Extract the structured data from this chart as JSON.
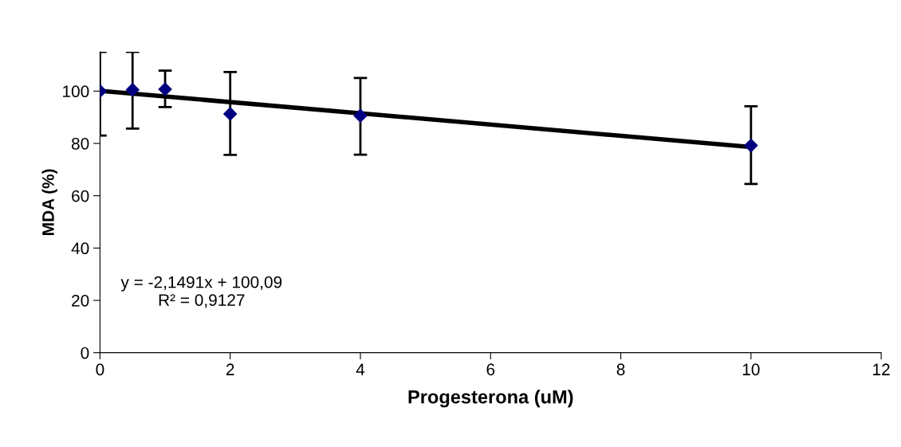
{
  "chart_data": {
    "type": "scatter",
    "xlabel": "Progesterona (uM)",
    "ylabel": "MDA (%)",
    "xlim": [
      0,
      12
    ],
    "xticks": [
      0,
      2,
      4,
      6,
      8,
      10,
      12
    ],
    "ylim": [
      0,
      115
    ],
    "yticks": [
      0,
      20,
      40,
      60,
      80,
      100
    ],
    "grid": false,
    "legend": false,
    "series": [
      {
        "color": "#000080",
        "marker": "diamond",
        "x": [
          0,
          0.5,
          1,
          2,
          4,
          10
        ],
        "values": [
          100,
          100.5,
          100.7,
          91.3,
          90.6,
          79.2
        ],
        "errors": [
          [
            83,
            115
          ],
          [
            85.7,
            115
          ],
          [
            93.9,
            107.8
          ],
          [
            75.6,
            107.3
          ],
          [
            75.7,
            105
          ],
          [
            64.5,
            94.2
          ]
        ]
      },
      {
        "type": "line",
        "color": "#000000",
        "marker": "none",
        "line_style": "solid",
        "x": [
          0,
          10
        ],
        "values": [
          100.1,
          78.6
        ]
      }
    ],
    "annotations": [
      "y = -2,1491x + 100,09\nR² = 0,9127"
    ]
  }
}
